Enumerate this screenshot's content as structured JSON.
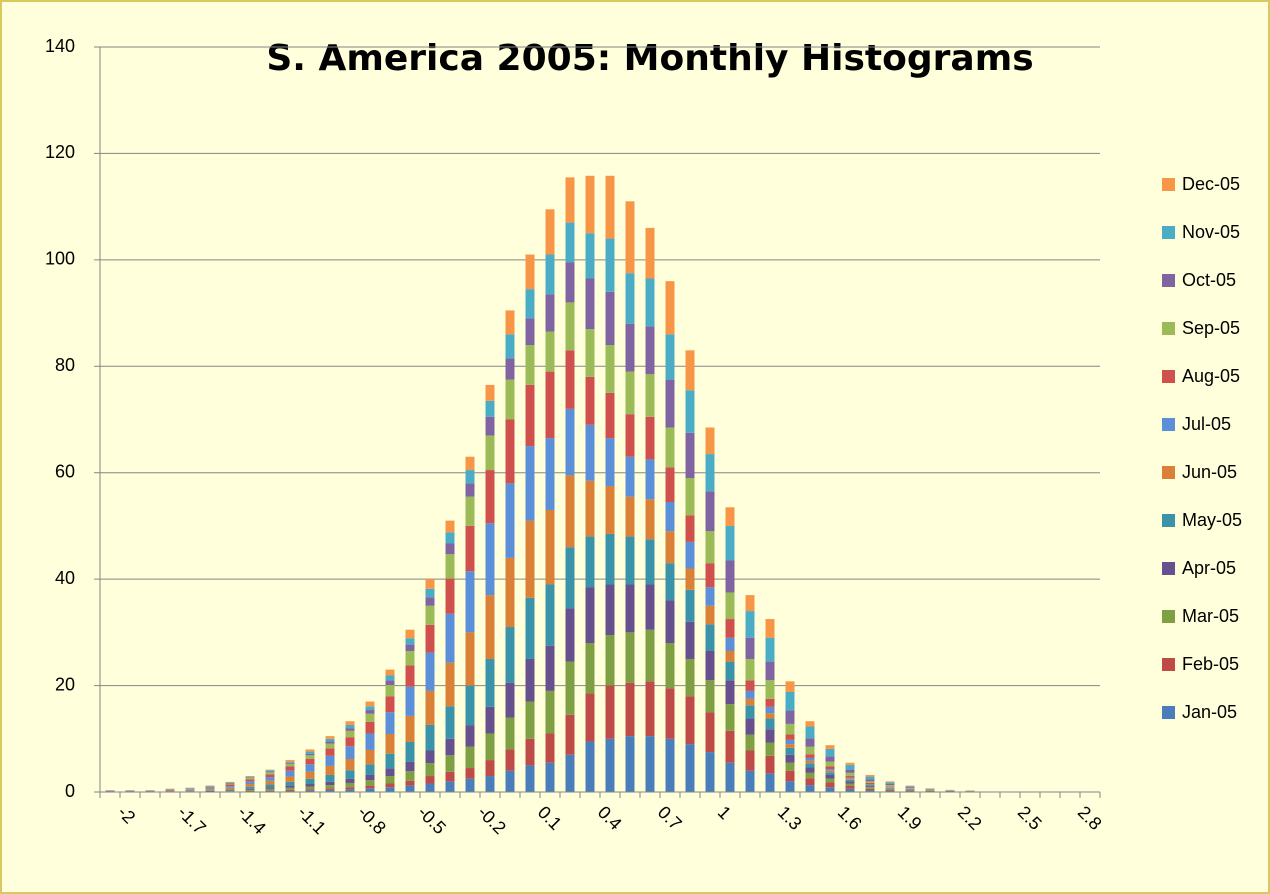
{
  "chart_data": {
    "type": "stacked_bar",
    "title": "S. America 2005: Monthly Histograms",
    "categories": [
      null,
      "-2",
      null,
      null,
      "-1.7",
      null,
      null,
      "-1.4",
      null,
      null,
      "-1.1",
      null,
      null,
      "-0.8",
      null,
      null,
      "-0.5",
      null,
      null,
      "-0.2",
      null,
      null,
      "0.1",
      null,
      null,
      "0.4",
      null,
      null,
      "0.7",
      null,
      null,
      "1",
      null,
      null,
      "1.3",
      null,
      null,
      "1.6",
      null,
      null,
      "1.9",
      null,
      null,
      "2.2",
      null,
      null,
      "2.5",
      null,
      null,
      "2.8"
    ],
    "ylim": [
      0,
      140
    ],
    "yticks": [
      0,
      20,
      40,
      60,
      80,
      100,
      120,
      140
    ],
    "grid": true,
    "legend": "right",
    "series": [
      {
        "name": "Jan-05",
        "color": "#4a7ebb",
        "values": [
          0,
          0,
          0,
          0,
          0,
          0,
          0.1,
          0.1,
          0.2,
          0.2,
          0.3,
          0.4,
          0.5,
          0.7,
          0.9,
          1.2,
          1.6,
          2,
          2.5,
          3,
          4,
          5,
          5.5,
          7,
          9.5,
          10,
          10.5,
          10.5,
          10,
          9,
          7.5,
          5.5,
          4,
          3.5,
          2,
          1.3,
          0.9,
          0.6,
          0.3,
          0.2,
          0.1,
          0.1,
          0,
          0,
          0,
          0,
          0,
          0,
          0,
          0
        ]
      },
      {
        "name": "Feb-05",
        "color": "#be4b48",
        "values": [
          0,
          0,
          0,
          0,
          0,
          0,
          0,
          0.1,
          0.1,
          0.2,
          0.2,
          0.3,
          0.4,
          0.5,
          0.7,
          0.9,
          1.4,
          1.8,
          2,
          3,
          4,
          5,
          5.5,
          7.5,
          9,
          10,
          10,
          10.3,
          9.5,
          9,
          7.5,
          6,
          3.8,
          3.3,
          2,
          1.3,
          0.9,
          0.6,
          0.3,
          0.2,
          0.1,
          0.1,
          0,
          0,
          0,
          0,
          0,
          0,
          0,
          0
        ]
      },
      {
        "name": "Mar-05",
        "color": "#7f9f45",
        "values": [
          0,
          0,
          0,
          0,
          0,
          0.1,
          0.1,
          0.2,
          0.3,
          0.4,
          0.5,
          0.6,
          0.8,
          1,
          1.4,
          1.8,
          2.4,
          3.1,
          4,
          5,
          6,
          7,
          8,
          10,
          9.5,
          9.5,
          9.5,
          9.7,
          8.5,
          7,
          6,
          5,
          3,
          2.5,
          1.5,
          1,
          0.7,
          0.4,
          0.3,
          0.2,
          0.1,
          0,
          0,
          0,
          0,
          0,
          0,
          0,
          0,
          0
        ]
      },
      {
        "name": "Apr-05",
        "color": "#66508d",
        "values": [
          0,
          0,
          0,
          0,
          0,
          0.1,
          0.1,
          0.2,
          0.3,
          0.4,
          0.5,
          0.6,
          0.8,
          1,
          1.4,
          1.8,
          2.4,
          3.1,
          4,
          5,
          6.5,
          8,
          8.5,
          10,
          10.5,
          9.5,
          9,
          8.5,
          8,
          7,
          5.5,
          4.5,
          3,
          2.5,
          1.5,
          1,
          0.7,
          0.4,
          0.2,
          0.1,
          0.1,
          0,
          0,
          0,
          0,
          0,
          0,
          0,
          0,
          0
        ]
      },
      {
        "name": "May-05",
        "color": "#3a93a8",
        "values": [
          0,
          0,
          0,
          0.1,
          0.1,
          0.1,
          0.2,
          0.4,
          0.5,
          0.7,
          1,
          1.3,
          1.6,
          2,
          2.8,
          3.7,
          4.8,
          6.1,
          7.5,
          9,
          10.5,
          11.5,
          11.5,
          11.5,
          9.5,
          9.5,
          9,
          8.5,
          7,
          6,
          5,
          3.5,
          2.5,
          2,
          1.3,
          0.8,
          0.5,
          0.3,
          0.2,
          0.1,
          0.1,
          0,
          0,
          0,
          0,
          0,
          0,
          0,
          0,
          0
        ]
      },
      {
        "name": "Jun-05",
        "color": "#da8137",
        "values": [
          0.1,
          0.1,
          0.1,
          0.1,
          0.1,
          0.2,
          0.3,
          0.5,
          0.7,
          1,
          1.3,
          1.7,
          2.1,
          2.7,
          3.7,
          4.9,
          6.4,
          8.2,
          10,
          12,
          13,
          14.5,
          14,
          13.5,
          10.5,
          9,
          7.5,
          7.5,
          6,
          4,
          3.5,
          2,
          1.2,
          1,
          0.7,
          0.5,
          0.3,
          0.2,
          0.1,
          0.1,
          0,
          0,
          0,
          0,
          0,
          0,
          0,
          0,
          0,
          0
        ]
      },
      {
        "name": "Jul-05",
        "color": "#5b90d8",
        "values": [
          0.1,
          0.1,
          0.1,
          0.1,
          0.2,
          0.2,
          0.3,
          0.5,
          0.7,
          1.1,
          1.4,
          1.9,
          2.4,
          3.1,
          4.1,
          5.5,
          7.2,
          9.2,
          11.5,
          13.5,
          14,
          14,
          13.5,
          12.5,
          10.5,
          9,
          7.5,
          7.5,
          5.5,
          5,
          3.5,
          2.5,
          1.5,
          1.2,
          0.8,
          0.5,
          0.3,
          0.2,
          0.1,
          0.1,
          0,
          0,
          0,
          0,
          0,
          0,
          0,
          0,
          0,
          0
        ]
      },
      {
        "name": "Aug-05",
        "color": "#d0504d",
        "values": [
          0.1,
          0.1,
          0.1,
          0.1,
          0.1,
          0.2,
          0.3,
          0.4,
          0.5,
          0.8,
          1,
          1.4,
          1.7,
          2.2,
          3,
          4,
          5.2,
          6.6,
          8.5,
          10,
          12,
          11.5,
          12.5,
          11,
          9,
          8.5,
          8,
          8,
          6.5,
          5,
          4.5,
          3.5,
          2,
          1.5,
          1,
          0.7,
          0.5,
          0.3,
          0.2,
          0.1,
          0.1,
          0,
          0,
          0,
          0,
          0,
          0,
          0,
          0,
          0
        ]
      },
      {
        "name": "Sep-05",
        "color": "#9bbb59",
        "values": [
          0,
          0,
          0,
          0.1,
          0.1,
          0.1,
          0.2,
          0.3,
          0.4,
          0.5,
          0.7,
          0.9,
          1.2,
          1.5,
          2.1,
          2.7,
          3.6,
          4.6,
          5.5,
          6.5,
          7.5,
          7.5,
          7.5,
          9,
          9,
          9,
          8,
          8,
          7.5,
          7,
          6,
          5,
          4,
          3.5,
          2,
          1.4,
          0.9,
          0.6,
          0.3,
          0.2,
          0.1,
          0.1,
          0.1,
          0,
          0,
          0,
          0,
          0,
          0,
          0
        ]
      },
      {
        "name": "Oct-05",
        "color": "#8064a2",
        "values": [
          0,
          0,
          0,
          0.1,
          0.1,
          0.1,
          0.1,
          0.1,
          0.2,
          0.2,
          0.3,
          0.4,
          0.5,
          0.7,
          0.9,
          1.2,
          1.6,
          2,
          2.5,
          3.5,
          4,
          5,
          7,
          7.5,
          9.5,
          10,
          9,
          9,
          9,
          8.5,
          7.5,
          6,
          4,
          3.5,
          2.5,
          1.6,
          1,
          0.6,
          0.4,
          0.2,
          0.2,
          0.1,
          0.1,
          0.1,
          0,
          0,
          0,
          0,
          0,
          0
        ]
      },
      {
        "name": "Nov-05",
        "color": "#4bacc6",
        "values": [
          0,
          0,
          0,
          0,
          0.1,
          0.1,
          0.1,
          0.1,
          0.2,
          0.2,
          0.4,
          0.5,
          0.6,
          0.7,
          0.9,
          1.2,
          1.6,
          2.1,
          2.5,
          3,
          4.5,
          5.5,
          7.5,
          7.5,
          8.5,
          10,
          9.5,
          9,
          8.5,
          8,
          7,
          6.5,
          5,
          4.5,
          3.5,
          2.2,
          1.4,
          0.9,
          0.5,
          0.3,
          0.2,
          0.2,
          0.1,
          0.1,
          0,
          0,
          0,
          0,
          0,
          0
        ]
      },
      {
        "name": "Dec-05",
        "color": "#f79646",
        "values": [
          0,
          0,
          0,
          0,
          0,
          0,
          0.1,
          0.1,
          0.1,
          0.3,
          0.4,
          0.5,
          0.7,
          0.9,
          1.1,
          1.6,
          1.8,
          2.2,
          2.5,
          3,
          4.5,
          6.5,
          8.5,
          8.5,
          10.8,
          11.8,
          13.5,
          9.5,
          10,
          7.5,
          5,
          3.5,
          3,
          3.5,
          2,
          1,
          0.7,
          0.4,
          0.3,
          0.2,
          0.1,
          0.1,
          0.1,
          0.1,
          0,
          0,
          0,
          0,
          0,
          0
        ]
      }
    ]
  }
}
